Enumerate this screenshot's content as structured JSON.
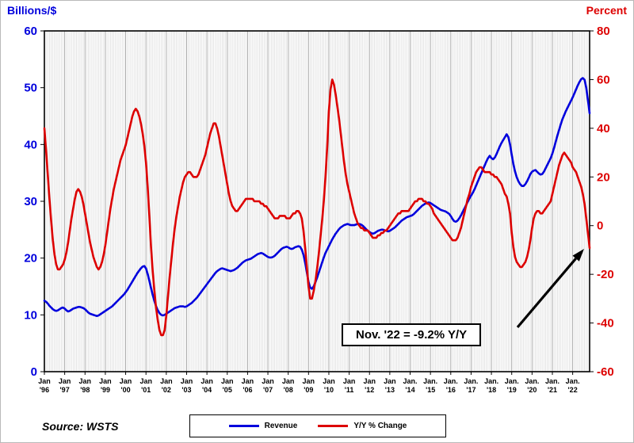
{
  "source": "Source: WSTS",
  "legend": [
    {
      "label": "Revenue",
      "color": "#0000dd"
    },
    {
      "label": "Y/Y % Change",
      "color": "#dd0000"
    }
  ],
  "chart_data": {
    "type": "line",
    "title": "",
    "x_start": "Jan 1996",
    "x_end": "Nov 2022",
    "x_frequency": "monthly",
    "left_axis": {
      "label": "Billions/$",
      "min": 0,
      "max": 60,
      "ticks": [
        0,
        10,
        20,
        30,
        40,
        50,
        60
      ],
      "color": "#0000dd"
    },
    "right_axis": {
      "label": "Percent",
      "min": -60,
      "max": 80,
      "ticks": [
        -60,
        -40,
        -20,
        0,
        20,
        40,
        60,
        80
      ],
      "color": "#dd0000"
    },
    "x_tick_month": [
      "Jan",
      "Jan",
      "Jan",
      "Jan",
      "Jan",
      "Jan",
      "Jan",
      "Jan",
      "Jan",
      "Jan",
      "Jan",
      "Jan",
      "Jan",
      "Jan",
      "Jan",
      "Jan",
      "Jan",
      "Jan",
      "Jan.",
      "Jan.",
      "Jan.",
      "Jan.",
      "Jan.",
      "Jan.",
      "Jan.",
      "Jan.",
      "Jan."
    ],
    "x_tick_year": [
      "'96",
      "'97",
      "'98",
      "'99",
      "'00",
      "'01",
      "'02",
      "'03",
      "'04",
      "'05",
      "'06",
      "'07",
      "'08",
      "'09",
      "'10",
      "'11",
      "'12",
      "'13",
      "'14",
      "'15",
      "'16",
      "'17",
      "'18",
      "'19",
      "'20",
      "'21",
      "'22"
    ],
    "layout_hints": {
      "grid": "vertical-monthly",
      "grid_color": "#d9d9d9",
      "grid_year_color": "#a0a0a0",
      "legend_position": "bottom-center",
      "plot_border": "#000000"
    },
    "series": [
      {
        "name": "Revenue",
        "axis": "left",
        "color": "#0000dd",
        "values": [
          12.5,
          12.3,
          12.0,
          11.6,
          11.3,
          11.0,
          10.8,
          10.7,
          10.8,
          11.0,
          11.2,
          11.3,
          11.1,
          10.8,
          10.6,
          10.7,
          10.9,
          11.1,
          11.2,
          11.3,
          11.4,
          11.4,
          11.3,
          11.2,
          11.0,
          10.7,
          10.4,
          10.2,
          10.1,
          10.0,
          9.9,
          9.8,
          9.9,
          10.1,
          10.3,
          10.5,
          10.7,
          10.9,
          11.1,
          11.3,
          11.5,
          11.8,
          12.1,
          12.4,
          12.7,
          13.0,
          13.3,
          13.6,
          14.0,
          14.4,
          14.9,
          15.4,
          15.9,
          16.4,
          16.9,
          17.4,
          17.8,
          18.2,
          18.5,
          18.6,
          18.2,
          17.2,
          16.0,
          14.7,
          13.5,
          12.4,
          11.5,
          10.8,
          10.3,
          10.0,
          9.9,
          10.0,
          10.2,
          10.4,
          10.6,
          10.8,
          11.0,
          11.2,
          11.3,
          11.4,
          11.5,
          11.5,
          11.5,
          11.4,
          11.5,
          11.7,
          11.9,
          12.1,
          12.4,
          12.7,
          13.0,
          13.4,
          13.8,
          14.2,
          14.6,
          15.0,
          15.4,
          15.8,
          16.2,
          16.6,
          17.0,
          17.4,
          17.7,
          17.9,
          18.1,
          18.2,
          18.1,
          18.0,
          17.9,
          17.8,
          17.7,
          17.8,
          17.9,
          18.1,
          18.3,
          18.6,
          18.9,
          19.2,
          19.4,
          19.6,
          19.7,
          19.8,
          19.9,
          20.1,
          20.3,
          20.5,
          20.7,
          20.8,
          20.9,
          20.8,
          20.6,
          20.4,
          20.2,
          20.1,
          20.1,
          20.2,
          20.4,
          20.7,
          21.0,
          21.3,
          21.6,
          21.8,
          21.9,
          22.0,
          21.9,
          21.7,
          21.6,
          21.7,
          21.9,
          22.0,
          22.1,
          22.0,
          21.5,
          20.6,
          19.2,
          17.5,
          15.8,
          14.8,
          14.6,
          15.0,
          15.7,
          16.5,
          17.4,
          18.3,
          19.2,
          20.1,
          20.9,
          21.5,
          22.1,
          22.7,
          23.3,
          23.8,
          24.3,
          24.7,
          25.1,
          25.4,
          25.6,
          25.8,
          25.9,
          26.0,
          25.9,
          25.8,
          25.8,
          25.8,
          25.9,
          26.0,
          26.0,
          25.9,
          25.7,
          25.4,
          25.1,
          24.8,
          24.6,
          24.4,
          24.3,
          24.4,
          24.6,
          24.8,
          24.9,
          25.0,
          25.0,
          24.9,
          24.8,
          24.7,
          24.8,
          25.0,
          25.2,
          25.4,
          25.7,
          26.0,
          26.3,
          26.6,
          26.8,
          27.0,
          27.2,
          27.3,
          27.4,
          27.5,
          27.7,
          28.0,
          28.3,
          28.6,
          28.9,
          29.2,
          29.4,
          29.6,
          29.7,
          29.8,
          29.7,
          29.5,
          29.3,
          29.1,
          28.9,
          28.7,
          28.5,
          28.4,
          28.3,
          28.2,
          28.0,
          27.8,
          27.4,
          26.9,
          26.5,
          26.4,
          26.6,
          27.0,
          27.5,
          28.1,
          28.7,
          29.3,
          29.9,
          30.5,
          31.0,
          31.5,
          32.1,
          32.8,
          33.5,
          34.2,
          34.9,
          35.6,
          36.3,
          37.0,
          37.6,
          38.0,
          37.6,
          37.4,
          37.7,
          38.3,
          39.0,
          39.7,
          40.3,
          40.8,
          41.3,
          41.8,
          41.3,
          40.0,
          38.2,
          36.5,
          35.2,
          34.2,
          33.5,
          33.0,
          32.7,
          32.7,
          33.0,
          33.5,
          34.1,
          34.8,
          35.2,
          35.4,
          35.5,
          35.2,
          34.9,
          34.7,
          34.8,
          35.2,
          35.8,
          36.4,
          37.0,
          37.6,
          38.4,
          39.4,
          40.5,
          41.6,
          42.6,
          43.6,
          44.5,
          45.2,
          45.9,
          46.5,
          47.1,
          47.7,
          48.3,
          49.0,
          49.7,
          50.4,
          51.0,
          51.5,
          51.7,
          51.4,
          50.0,
          47.8,
          45.5
        ]
      },
      {
        "name": "Y/Y % Change",
        "axis": "right",
        "color": "#dd0000",
        "values": [
          40,
          31,
          21,
          11,
          2,
          -6,
          -12,
          -16,
          -18,
          -18,
          -17,
          -16,
          -14,
          -11,
          -7,
          -2,
          3,
          7,
          11,
          14,
          15,
          14,
          12,
          9,
          5,
          1,
          -3,
          -7,
          -10,
          -13,
          -15,
          -17,
          -18,
          -17,
          -15,
          -12,
          -8,
          -3,
          2,
          7,
          11,
          15,
          18,
          21,
          24,
          27,
          29,
          31,
          33,
          36,
          39,
          42,
          45,
          47,
          48,
          47,
          45,
          42,
          38,
          33,
          26,
          16,
          4,
          -9,
          -19,
          -27,
          -34,
          -39,
          -43,
          -45,
          -45,
          -43,
          -37,
          -29,
          -21,
          -14,
          -7,
          -1,
          4,
          8,
          12,
          15,
          18,
          20,
          21,
          22,
          22,
          21,
          20,
          20,
          20,
          21,
          23,
          25,
          27,
          29,
          32,
          35,
          38,
          40,
          42,
          42,
          40,
          37,
          33,
          29,
          25,
          21,
          17,
          13,
          10,
          8,
          7,
          6,
          6,
          7,
          8,
          9,
          10,
          11,
          11,
          11,
          11,
          11,
          10,
          10,
          10,
          10,
          9,
          9,
          8,
          8,
          7,
          6,
          5,
          4,
          3,
          3,
          3,
          4,
          4,
          4,
          4,
          3,
          3,
          3,
          4,
          5,
          5,
          6,
          6,
          5,
          3,
          -2,
          -9,
          -17,
          -25,
          -30,
          -30,
          -27,
          -23,
          -18,
          -12,
          -5,
          2,
          10,
          20,
          32,
          47,
          56,
          60,
          58,
          54,
          49,
          44,
          38,
          32,
          26,
          21,
          17,
          14,
          11,
          8,
          5,
          3,
          1,
          0,
          -1,
          -1,
          -2,
          -2,
          -2,
          -3,
          -4,
          -5,
          -5,
          -5,
          -4,
          -4,
          -3,
          -3,
          -2,
          -2,
          -1,
          0,
          1,
          2,
          3,
          4,
          5,
          5,
          6,
          6,
          6,
          6,
          6,
          7,
          8,
          9,
          10,
          10,
          11,
          11,
          11,
          10,
          10,
          9,
          9,
          8,
          7,
          5,
          4,
          3,
          2,
          1,
          0,
          -1,
          -2,
          -3,
          -4,
          -5,
          -6,
          -6,
          -6,
          -5,
          -3,
          -1,
          2,
          5,
          8,
          11,
          13,
          16,
          18,
          20,
          22,
          23,
          24,
          24,
          23,
          22,
          22,
          22,
          22,
          21,
          21,
          20,
          20,
          19,
          18,
          17,
          15,
          13,
          12,
          9,
          5,
          -3,
          -9,
          -13,
          -15,
          -16,
          -17,
          -17,
          -16,
          -15,
          -13,
          -10,
          -6,
          -1,
          3,
          5,
          6,
          6,
          5,
          5,
          6,
          7,
          8,
          9,
          10,
          13,
          16,
          19,
          22,
          25,
          27,
          29,
          30,
          29,
          28,
          27,
          26,
          24,
          23,
          22,
          20,
          18,
          16,
          13,
          9,
          3,
          -3,
          -9.2
        ]
      }
    ],
    "annotation": {
      "text": "Nov. '22 = -9.2% Y/Y",
      "points_to": {
        "month": "Nov 2022",
        "value": -9.2
      }
    }
  }
}
